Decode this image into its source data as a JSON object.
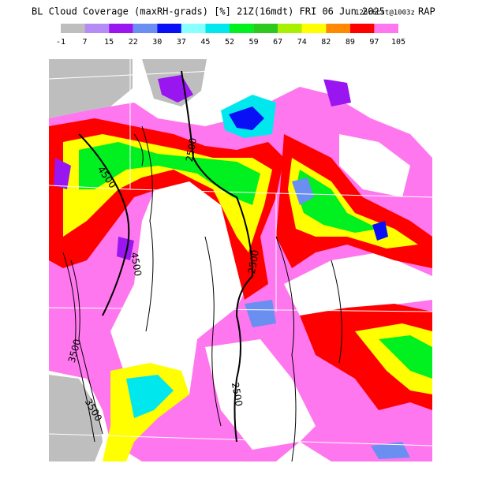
{
  "header": {
    "title": "BL Cloud Coverage (maxRH-grads) [%] 21Z(16mdt) FRI 06 Jun 2025",
    "forecast": "12hrFcst@1003z",
    "model": "RAP"
  },
  "legend": {
    "colors": [
      "#bebebe",
      "#b58cf5",
      "#9a16f0",
      "#6a8ff0",
      "#0a10f5",
      "#8affff",
      "#00e8ee",
      "#00f020",
      "#2ec81e",
      "#a8f000",
      "#ffff00",
      "#ff8a00",
      "#ff0000",
      "#ff77ee"
    ],
    "labels": [
      -1,
      7,
      15,
      22,
      30,
      37,
      45,
      52,
      59,
      67,
      74,
      82,
      89,
      97,
      105
    ]
  },
  "map": {
    "contour_labels": [
      "2500",
      "4500",
      "4500",
      "2500",
      "2500",
      "3500",
      "3500"
    ]
  }
}
